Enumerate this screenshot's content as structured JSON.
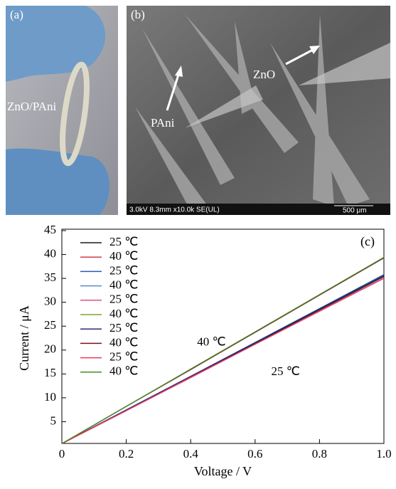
{
  "panels": {
    "a": {
      "label": "(a)",
      "sample": "ZnO/PAni"
    },
    "b": {
      "label": "(b)",
      "pani": "PAni",
      "zno": "ZnO",
      "info": "3.0kV 8.3mm x10.0k SE(UL)",
      "scale": "500 μm"
    }
  },
  "chart_data": {
    "type": "line",
    "panel_label": "(c)",
    "x_label": "Voltage / V",
    "y_label": "Current / μA",
    "x": [
      0,
      0.2,
      0.4,
      0.6,
      0.8,
      1.0
    ],
    "xlim": [
      0,
      1.0
    ],
    "ylim": [
      0,
      45
    ],
    "xticks": [
      0,
      0.2,
      0.4,
      0.6,
      0.8,
      {
        "value": 1.0,
        "label": "1.0"
      }
    ],
    "yticks": [
      5,
      10,
      15,
      20,
      25,
      30,
      35,
      40,
      45
    ],
    "annotations": [
      {
        "text": "40 ℃",
        "x": 0.42,
        "y": 21.5
      },
      {
        "text": "25 ℃",
        "x": 0.65,
        "y": 15.3
      }
    ],
    "series": [
      {
        "name": "25 ℃",
        "color": "#1a1a1a",
        "values": [
          0.4,
          7.4,
          14.4,
          21.4,
          28.4,
          35.4
        ]
      },
      {
        "name": "40 ℃",
        "color": "#d03a4a",
        "values": [
          0.4,
          8.2,
          16.0,
          23.8,
          31.6,
          39.4
        ]
      },
      {
        "name": "25 ℃",
        "color": "#2d5aa8",
        "values": [
          0.4,
          7.5,
          14.5,
          21.6,
          28.7,
          35.8
        ]
      },
      {
        "name": "40 ℃",
        "color": "#5b8cc0",
        "values": [
          0.4,
          8.2,
          16.0,
          23.7,
          31.5,
          39.3
        ]
      },
      {
        "name": "25 ℃",
        "color": "#e0508a",
        "values": [
          0.4,
          7.3,
          14.2,
          21.2,
          28.1,
          35.0
        ]
      },
      {
        "name": "40 ℃",
        "color": "#7aa630",
        "values": [
          0.4,
          8.2,
          16.0,
          23.8,
          31.6,
          39.4
        ]
      },
      {
        "name": "25 ℃",
        "color": "#2b2b70",
        "values": [
          0.4,
          7.4,
          14.5,
          21.5,
          28.6,
          35.6
        ]
      },
      {
        "name": "40 ℃",
        "color": "#7a1020",
        "values": [
          0.4,
          8.2,
          15.9,
          23.7,
          31.5,
          39.3
        ]
      },
      {
        "name": "25 ℃",
        "color": "#e83a5a",
        "values": [
          0.4,
          7.3,
          14.3,
          21.2,
          28.2,
          35.1
        ]
      },
      {
        "name": "40 ℃",
        "color": "#4a8a28",
        "values": [
          0.4,
          8.2,
          16.0,
          23.8,
          31.6,
          39.4
        ]
      }
    ]
  }
}
